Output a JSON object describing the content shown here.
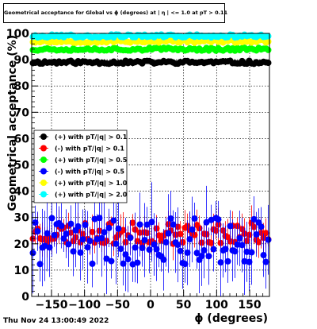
{
  "header": {
    "title": "Geometrical acceptance for Global vs ϕ (degrees) at | η | <= 1.0 at pT > 0.11",
    "timestamp": "Thu Nov 24 13:00:49 2022"
  },
  "colors": {
    "black": "#000000",
    "red": "#ff0000",
    "green": "#00ff00",
    "blue": "#0000ff",
    "yellow": "#ffff00",
    "cyan": "#00ffff"
  },
  "chart_data": {
    "type": "scatter",
    "xlabel": "ϕ (degrees)",
    "ylabel": "Geometrical acceptance (%)",
    "xlim": [
      -180,
      180
    ],
    "ylim": [
      0,
      100
    ],
    "x_ticks": [
      -150,
      -100,
      -50,
      0,
      50,
      100,
      150
    ],
    "y_ticks": [
      0,
      10,
      20,
      30,
      40,
      50,
      60,
      70,
      80,
      90,
      100
    ],
    "grid": true,
    "legend_position": "center-left",
    "series": [
      {
        "name": "(+) with pT/|q| > 0.1",
        "color": "#000000",
        "mean": 89,
        "spread": 0.6,
        "err": 1.0,
        "seed": 11
      },
      {
        "name": "(-) with pT/|q| > 0.1",
        "color": "#ff0000",
        "mean": 24,
        "spread": 4,
        "err": 5,
        "seed": 23
      },
      {
        "name": "(+) with pT/|q| > 0.5",
        "color": "#00ff00",
        "mean": 94,
        "spread": 0.6,
        "err": 0.8,
        "seed": 37
      },
      {
        "name": "(-) with pT/|q| > 0.5",
        "color": "#0000ff",
        "mean": 21,
        "spread": 9,
        "err": 11,
        "seed": 41
      },
      {
        "name": "(+) with pT/|q| > 1.0",
        "color": "#ffff00",
        "mean": 97,
        "spread": 0.6,
        "err": 0.8,
        "seed": 53
      },
      {
        "name": "(+) with pT/|q| > 2.0",
        "color": "#00ffff",
        "mean": 99,
        "spread": 0.6,
        "err": 0.8,
        "seed": 67
      }
    ]
  }
}
